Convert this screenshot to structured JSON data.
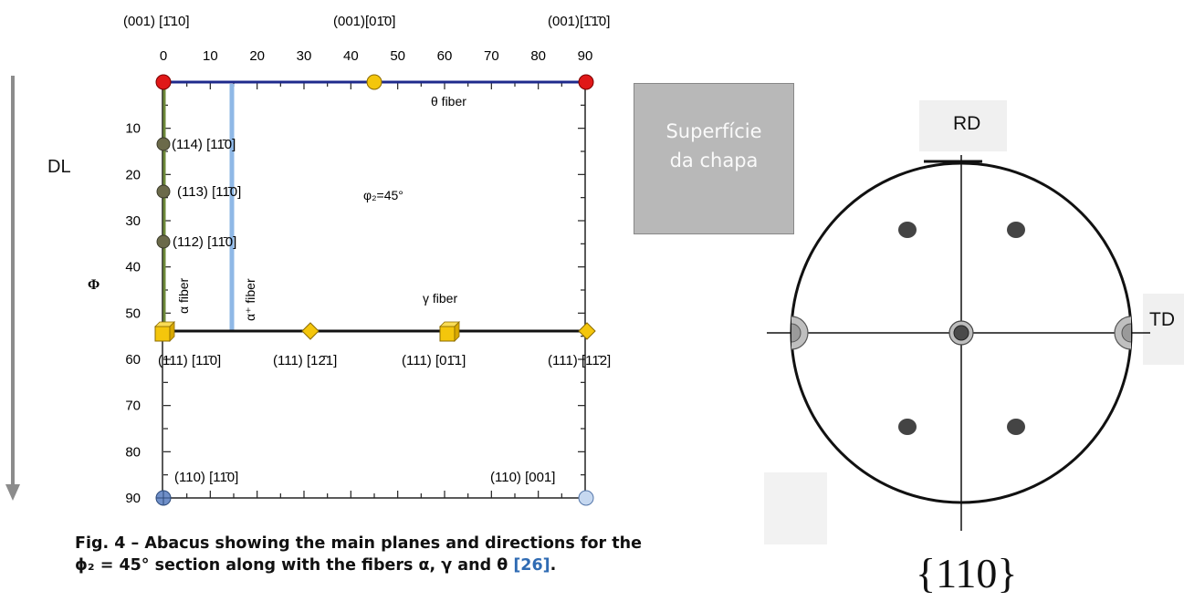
{
  "left_figure": {
    "top_orientations": [
      "(001) [1̄10]",
      "(001)[01̄0]",
      "(001)[1̄1̄0]"
    ],
    "phi1_ticks": [
      "0",
      "10",
      "20",
      "30",
      "40",
      "50",
      "60",
      "70",
      "80",
      "90"
    ],
    "Phi_ticks": [
      "10",
      "20",
      "30",
      "40",
      "50",
      "60",
      "70",
      "80",
      "90"
    ],
    "Phi_axis_label": "Φ",
    "section_label": "φ₂=45°",
    "fiber_labels": {
      "theta": "θ fiber",
      "alpha": "α fiber",
      "alpha_plus": "α⁺ fiber",
      "gamma": "γ fiber"
    },
    "alpha_points": [
      "(114) [11̄0]",
      "(113) [11̄0]",
      "(112) [11̄0]"
    ],
    "gamma_points": [
      "(111) [11̄0]",
      "(111) [12̄1]",
      "(111) [01̄1]",
      "(111) [11̄2]"
    ],
    "bottom_points": [
      "(110) [11̄0]",
      "(110) [001]"
    ],
    "caption_part1": "Fig. 4 – Abacus showing the main planes and directions for the ",
    "caption_math": "ϕ₂ = 45°",
    "caption_part2": " section along with the fibers α, γ and θ ",
    "caption_ref": "[26]",
    "caption_end": ".",
    "colors": {
      "theta_line": "#1e2a8c",
      "alpha_line": "#6e8a3a",
      "alpha_plus_line": "#8fb8e6",
      "gamma_line": "#111111",
      "red_marker": "#e01818",
      "yellow_marker": "#f4c60c",
      "olive_marker": "#6b6a4a"
    }
  },
  "dl_label": "DL",
  "surface_box": {
    "line1": "Superfície",
    "line2": "da chapa"
  },
  "pole_figure": {
    "rd_label": "RD",
    "td_label": "TD",
    "family_label": "{110}"
  }
}
